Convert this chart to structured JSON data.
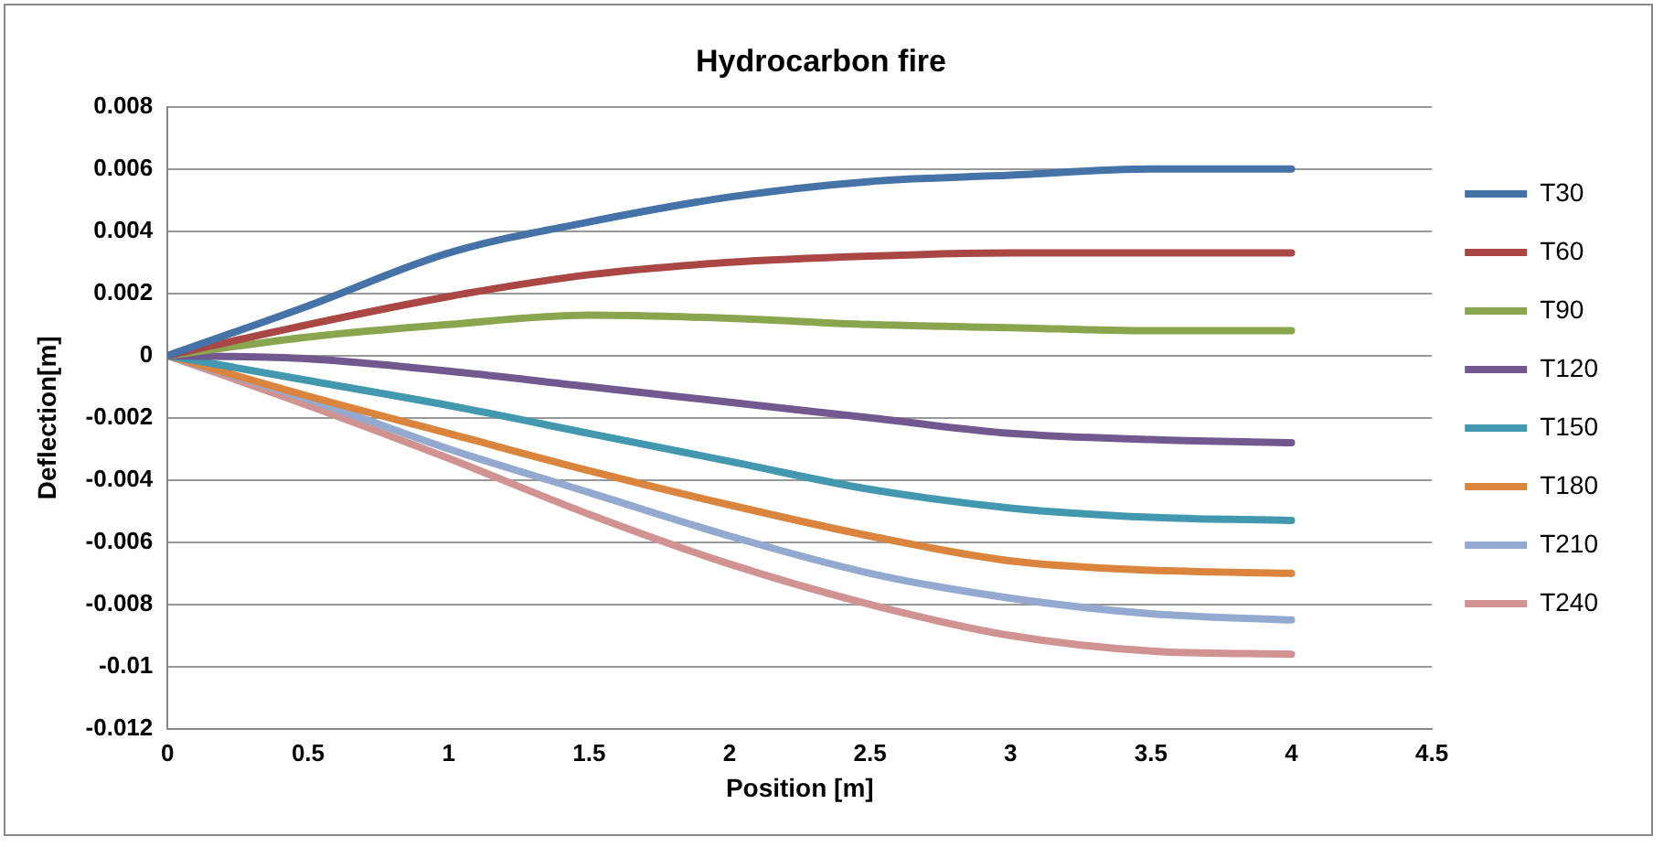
{
  "chart_data": {
    "type": "line",
    "title": "Hydrocarbon fire",
    "xlabel": "Position [m]",
    "ylabel": "Deflection[m]",
    "x": [
      0,
      0.5,
      1,
      1.5,
      2,
      2.5,
      3,
      3.5,
      4
    ],
    "xlim": [
      0,
      4.5
    ],
    "xticks": [
      0,
      0.5,
      1,
      1.5,
      2,
      2.5,
      3,
      3.5,
      4,
      4.5
    ],
    "ylim": [
      -0.012,
      0.008
    ],
    "yticks": [
      -0.012,
      -0.01,
      -0.008,
      -0.006,
      -0.004,
      -0.002,
      0,
      0.002,
      0.004,
      0.006,
      0.008
    ],
    "grid": "y",
    "legend": "right",
    "marker": "none",
    "line_style": "solid",
    "series": [
      {
        "name": "T30",
        "color": "#4572a7",
        "values": [
          0,
          0.0016,
          0.0033,
          0.0043,
          0.0051,
          0.0056,
          0.0058,
          0.006,
          0.006
        ]
      },
      {
        "name": "T60",
        "color": "#aa4643",
        "values": [
          0,
          0.001,
          0.0019,
          0.0026,
          0.003,
          0.0032,
          0.0033,
          0.0033,
          0.0033
        ]
      },
      {
        "name": "T90",
        "color": "#89a54e",
        "values": [
          0,
          0.0006,
          0.001,
          0.0013,
          0.0012,
          0.001,
          0.0009,
          0.0008,
          0.0008
        ]
      },
      {
        "name": "T120",
        "color": "#71588f",
        "values": [
          0,
          -0.0001,
          -0.0005,
          -0.001,
          -0.0015,
          -0.002,
          -0.0025,
          -0.0027,
          -0.0028
        ]
      },
      {
        "name": "T150",
        "color": "#4198af",
        "values": [
          0,
          -0.0008,
          -0.0016,
          -0.0025,
          -0.0034,
          -0.0043,
          -0.0049,
          -0.0052,
          -0.0053
        ]
      },
      {
        "name": "T180",
        "color": "#db843d",
        "values": [
          0,
          -0.0013,
          -0.0025,
          -0.0037,
          -0.0048,
          -0.0058,
          -0.0066,
          -0.0069,
          -0.007
        ]
      },
      {
        "name": "T210",
        "color": "#93a9cf",
        "values": [
          0,
          -0.0014,
          -0.003,
          -0.0044,
          -0.0058,
          -0.007,
          -0.0078,
          -0.0083,
          -0.0085
        ]
      },
      {
        "name": "T240",
        "color": "#d19392",
        "values": [
          0,
          -0.0016,
          -0.0033,
          -0.0051,
          -0.0067,
          -0.008,
          -0.009,
          -0.0095,
          -0.0096
        ]
      }
    ]
  }
}
